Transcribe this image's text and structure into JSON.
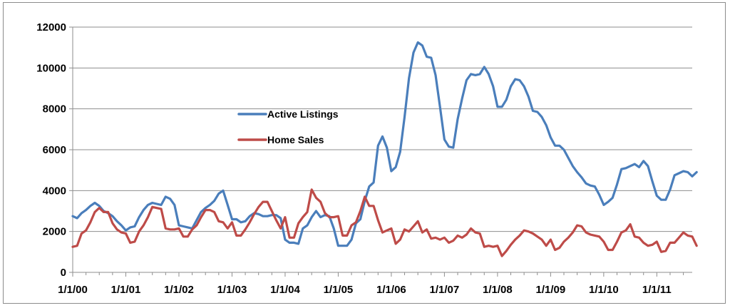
{
  "chart_data": {
    "type": "line",
    "title": "",
    "xlabel": "",
    "ylabel": "",
    "ylim": [
      0,
      12000
    ],
    "yticks": [
      0,
      2000,
      4000,
      6000,
      8000,
      10000,
      12000
    ],
    "xlim": [
      0,
      140
    ],
    "xticks": [
      "1/1/00",
      "1/1/01",
      "1/1/02",
      "1/1/03",
      "1/1/04",
      "1/1/05",
      "1/1/06",
      "1/1/07",
      "1/1/08",
      "1/1/09",
      "1/1/10",
      "1/1/11"
    ],
    "grid": "horizontal",
    "legend_position": "center-left",
    "series": [
      {
        "name": "Active Listings",
        "color": "#4a7ebb",
        "values": [
          2750,
          2650,
          2900,
          3050,
          3250,
          3400,
          3250,
          3000,
          2900,
          2750,
          2500,
          2300,
          2050,
          2200,
          2250,
          2700,
          3050,
          3300,
          3400,
          3350,
          3300,
          3700,
          3600,
          3300,
          2300,
          2250,
          2200,
          2150,
          2550,
          2950,
          3150,
          3300,
          3500,
          3850,
          4000,
          3300,
          2600,
          2600,
          2450,
          2500,
          2750,
          2900,
          2850,
          2750,
          2750,
          2800,
          2800,
          2650,
          1600,
          1450,
          1450,
          1400,
          2150,
          2300,
          2700,
          3000,
          2700,
          2800,
          2750,
          2150,
          1300,
          1300,
          1300,
          1600,
          2400,
          2600,
          3500,
          4200,
          4400,
          6200,
          6650,
          6100,
          4950,
          5150,
          5900,
          7600,
          9500,
          10750,
          11250,
          11100,
          10550,
          10500,
          9650,
          8100,
          6500,
          6150,
          6100,
          7500,
          8500,
          9400,
          9700,
          9650,
          9700,
          10050,
          9700,
          9100,
          8100,
          8100,
          8450,
          9100,
          9450,
          9400,
          9100,
          8600,
          7900,
          7850,
          7600,
          7200,
          6600,
          6200,
          6200,
          6000,
          5600,
          5200,
          4900,
          4650,
          4350,
          4250,
          4200,
          3800,
          3300,
          3450,
          3650,
          4300,
          5050,
          5100,
          5200,
          5300,
          5150,
          5450,
          5200,
          4450,
          3750,
          3550,
          3550,
          4050,
          4750,
          4850,
          4950,
          4900,
          4700,
          4900
        ]
      },
      {
        "name": "Home Sales",
        "color": "#be4b48",
        "values": [
          1250,
          1300,
          1900,
          2050,
          2450,
          2950,
          3150,
          2950,
          2950,
          2400,
          2100,
          1950,
          1900,
          1450,
          1500,
          2000,
          2300,
          2700,
          3200,
          3150,
          3100,
          2150,
          2100,
          2100,
          2150,
          1750,
          1750,
          2100,
          2300,
          2700,
          3050,
          3050,
          2950,
          2500,
          2450,
          2150,
          2450,
          1800,
          1800,
          2100,
          2450,
          2850,
          3200,
          3450,
          3450,
          3000,
          2550,
          2150,
          2700,
          1700,
          1700,
          2400,
          2700,
          2950,
          4050,
          3650,
          3450,
          2900,
          2700,
          2700,
          2750,
          1800,
          1800,
          2300,
          2450,
          3000,
          3700,
          3250,
          3250,
          2550,
          1950,
          2050,
          2150,
          1400,
          1600,
          2100,
          2000,
          2250,
          2500,
          1950,
          2100,
          1650,
          1700,
          1600,
          1700,
          1450,
          1550,
          1800,
          1700,
          1850,
          2150,
          1950,
          1900,
          1250,
          1300,
          1250,
          1300,
          800,
          1050,
          1350,
          1600,
          1800,
          2050,
          2000,
          1900,
          1750,
          1600,
          1300,
          1600,
          1100,
          1200,
          1500,
          1700,
          1950,
          2300,
          2250,
          1950,
          1850,
          1800,
          1750,
          1500,
          1100,
          1100,
          1500,
          1950,
          2050,
          2350,
          1750,
          1700,
          1450,
          1300,
          1350,
          1500,
          1000,
          1050,
          1450,
          1450,
          1700,
          1950,
          1800,
          1750,
          1300
        ]
      }
    ]
  }
}
